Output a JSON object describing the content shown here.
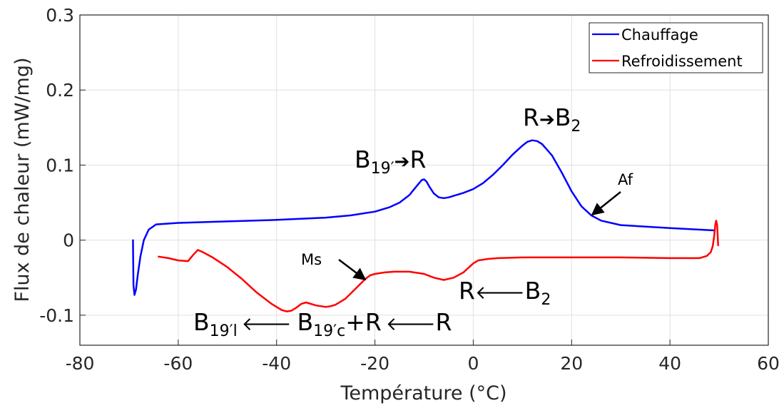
{
  "chart_data": {
    "type": "line",
    "title": "",
    "xlabel": "Température (°C)",
    "ylabel": "Flux de chaleur (mW/mg)",
    "xlim": [
      -80,
      60
    ],
    "ylim": [
      -0.14,
      0.3
    ],
    "xticks": [
      -80,
      -60,
      -40,
      -20,
      0,
      20,
      40,
      60
    ],
    "xtick_labels": [
      "-80",
      "-60",
      "-40",
      "-20",
      "0",
      "20",
      "40",
      "60"
    ],
    "yticks": [
      -0.1,
      0,
      0.1,
      0.2,
      0.3
    ],
    "ytick_labels": [
      "-0.1",
      "0",
      "0.1",
      "0.2",
      "0.3"
    ],
    "grid": true,
    "legend_position": "top-right",
    "series": [
      {
        "name": "Chauffage",
        "color": "#0000ff",
        "x": [
          -69.2,
          -69.1,
          -68.9,
          -68.6,
          -68.2,
          -67.7,
          -67.0,
          -66.0,
          -64.5,
          -60,
          -50,
          -40,
          -30,
          -25,
          -20,
          -17,
          -15,
          -13,
          -12,
          -11,
          -10.5,
          -10,
          -9.5,
          -9,
          -8,
          -7,
          -6,
          -5,
          -4,
          -2,
          0,
          2,
          4,
          6,
          8,
          10,
          11,
          12,
          13,
          14,
          16,
          18,
          20,
          22,
          24,
          26,
          30,
          40,
          49
        ],
        "y": [
          0.0,
          -0.06,
          -0.073,
          -0.066,
          -0.045,
          -0.022,
          0.0,
          0.014,
          0.021,
          0.023,
          0.025,
          0.027,
          0.03,
          0.033,
          0.038,
          0.044,
          0.05,
          0.06,
          0.068,
          0.076,
          0.08,
          0.081,
          0.078,
          0.072,
          0.062,
          0.057,
          0.056,
          0.057,
          0.059,
          0.063,
          0.068,
          0.076,
          0.087,
          0.1,
          0.114,
          0.126,
          0.131,
          0.133,
          0.132,
          0.128,
          0.113,
          0.09,
          0.065,
          0.045,
          0.033,
          0.026,
          0.02,
          0.016,
          0.013
        ]
      },
      {
        "name": "Refroidissement",
        "color": "#ff0000",
        "x": [
          49.8,
          49.6,
          49.4,
          49.2,
          49.0,
          48.7,
          48.3,
          47.5,
          46,
          40,
          30,
          20,
          10,
          5,
          3,
          1,
          0,
          -1,
          -2,
          -4,
          -6,
          -8,
          -10,
          -13,
          -16,
          -18,
          -20,
          -21,
          -22,
          -24,
          -26,
          -28,
          -29,
          -30,
          -32,
          -34,
          -35,
          -36,
          -37,
          -38,
          -39,
          -41,
          -44,
          -47,
          -50,
          -53,
          -55,
          -56,
          -57,
          -58,
          -60,
          -62,
          -64
        ],
        "y": [
          -0.007,
          0.02,
          0.026,
          0.02,
          0.006,
          -0.008,
          -0.016,
          -0.021,
          -0.024,
          -0.024,
          -0.023,
          -0.023,
          -0.023,
          -0.024,
          -0.025,
          -0.027,
          -0.031,
          -0.037,
          -0.043,
          -0.05,
          -0.053,
          -0.05,
          -0.045,
          -0.042,
          -0.042,
          -0.043,
          -0.045,
          -0.047,
          -0.052,
          -0.065,
          -0.078,
          -0.086,
          -0.088,
          -0.089,
          -0.087,
          -0.083,
          -0.085,
          -0.09,
          -0.094,
          -0.095,
          -0.093,
          -0.085,
          -0.07,
          -0.052,
          -0.036,
          -0.023,
          -0.016,
          -0.013,
          -0.02,
          -0.028,
          -0.027,
          -0.024,
          -0.022
        ]
      }
    ],
    "annotations": [
      {
        "id": "b19-r",
        "main": "B",
        "sub": "19′",
        "arrow": "➔",
        "after": "R"
      },
      {
        "id": "r-b2",
        "main": "R",
        "arrow": "➔",
        "after": "B",
        "after_sub": "2"
      },
      {
        "id": "af",
        "text": "Af"
      },
      {
        "id": "ms",
        "text": "Ms"
      },
      {
        "id": "r-from-b2",
        "main": "R",
        "arrow": "🡐",
        "after": "B",
        "after_sub": "2"
      },
      {
        "id": "b19l",
        "main": "B",
        "sub": "19′l",
        "arrow1": "🡐",
        "mid": "B",
        "mid_sub": "19′c",
        "mid_after": "+R",
        "arrow2": "🡐",
        "end": "R"
      }
    ]
  }
}
